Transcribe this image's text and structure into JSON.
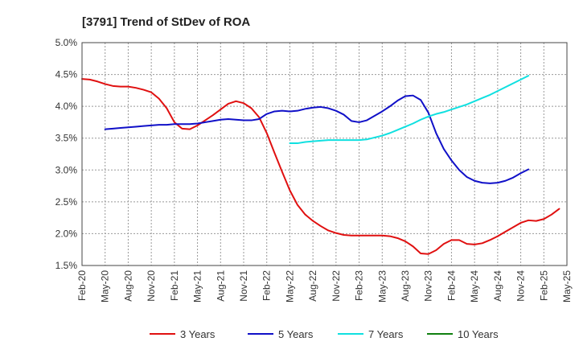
{
  "chart_data": {
    "type": "line",
    "title": "[3791]  Trend of StDev of ROA",
    "xlabel": "",
    "ylabel": "",
    "ylim": [
      1.5,
      5.0
    ],
    "yticks": [
      1.5,
      2.0,
      2.5,
      3.0,
      3.5,
      4.0,
      4.5,
      5.0
    ],
    "ytick_labels": [
      "1.5%",
      "2.0%",
      "2.5%",
      "3.0%",
      "3.5%",
      "4.0%",
      "4.5%",
      "5.0%"
    ],
    "xtick_labels": [
      "Feb-20",
      "May-20",
      "Aug-20",
      "Nov-20",
      "Feb-21",
      "May-21",
      "Aug-21",
      "Nov-21",
      "Feb-22",
      "May-22",
      "Aug-22",
      "Nov-22",
      "Feb-23",
      "May-23",
      "Aug-23",
      "Nov-23",
      "Feb-24",
      "May-24",
      "Aug-24",
      "Nov-24",
      "Feb-25",
      "May-25"
    ],
    "grid": true,
    "legend_position": "bottom",
    "series": [
      {
        "name": "3 Years",
        "color": "#e01010",
        "start_index": 0,
        "values": [
          4.43,
          4.42,
          4.39,
          4.35,
          4.32,
          4.31,
          4.31,
          4.29,
          4.26,
          4.22,
          4.12,
          3.97,
          3.75,
          3.65,
          3.64,
          3.7,
          3.78,
          3.86,
          3.95,
          4.04,
          4.08,
          4.05,
          3.97,
          3.83,
          3.58,
          3.27,
          2.97,
          2.68,
          2.45,
          2.3,
          2.2,
          2.12,
          2.05,
          2.01,
          1.98,
          1.97,
          1.97,
          1.97,
          1.97,
          1.97,
          1.96,
          1.93,
          1.88,
          1.8,
          1.69,
          1.68,
          1.74,
          1.84,
          1.9,
          1.9,
          1.84,
          1.83,
          1.85,
          1.9,
          1.96,
          2.03,
          2.1,
          2.17,
          2.21,
          2.2,
          2.23,
          2.3,
          2.39
        ]
      },
      {
        "name": "5 Years",
        "color": "#1010c8",
        "start_index": 3,
        "values": [
          3.64,
          3.65,
          3.66,
          3.67,
          3.68,
          3.69,
          3.7,
          3.71,
          3.71,
          3.72,
          3.72,
          3.72,
          3.73,
          3.75,
          3.77,
          3.79,
          3.8,
          3.79,
          3.78,
          3.78,
          3.8,
          3.88,
          3.92,
          3.93,
          3.92,
          3.93,
          3.96,
          3.98,
          3.99,
          3.97,
          3.93,
          3.87,
          3.77,
          3.75,
          3.78,
          3.85,
          3.92,
          4.0,
          4.09,
          4.16,
          4.17,
          4.1,
          3.9,
          3.58,
          3.33,
          3.15,
          3.0,
          2.89,
          2.83,
          2.8,
          2.79,
          2.8,
          2.83,
          2.88,
          2.95,
          3.01
        ]
      },
      {
        "name": "7 Years",
        "color": "#10e0e0",
        "start_index": 27,
        "values": [
          3.42,
          3.42,
          3.44,
          3.45,
          3.46,
          3.47,
          3.47,
          3.47,
          3.47,
          3.47,
          3.48,
          3.51,
          3.54,
          3.58,
          3.63,
          3.68,
          3.73,
          3.79,
          3.84,
          3.88,
          3.91,
          3.95,
          3.99,
          4.03,
          4.08,
          4.13,
          4.18,
          4.24,
          4.3,
          4.36,
          4.42,
          4.48
        ]
      },
      {
        "name": "10 Years",
        "color": "#108010",
        "start_index": 0,
        "values": []
      }
    ]
  }
}
